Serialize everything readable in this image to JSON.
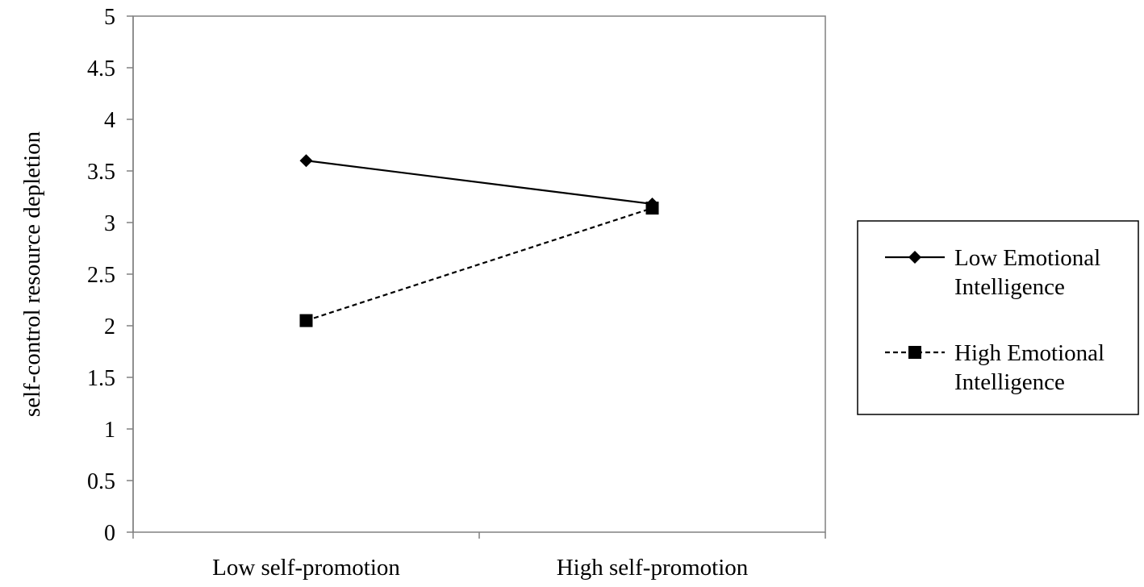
{
  "chart_data": {
    "type": "line",
    "title": "",
    "xlabel": "",
    "ylabel": "self-control resource depletion",
    "categories": [
      "Low self-promotion",
      "High self-promotion"
    ],
    "ylim": [
      0,
      5
    ],
    "yticks": [
      "0",
      "0.5",
      "1",
      "1.5",
      "2",
      "2.5",
      "3",
      "3.5",
      "4",
      "4.5",
      "5"
    ],
    "grid": false,
    "legend_position": "right",
    "series": [
      {
        "name_lines": [
          "Low Emotional",
          "Intelligence"
        ],
        "values": [
          3.6,
          3.18
        ],
        "marker": "diamond",
        "line_style": "solid",
        "color": "#000000"
      },
      {
        "name_lines": [
          "High Emotional",
          "Intelligence"
        ],
        "values": [
          2.05,
          3.14
        ],
        "marker": "square",
        "line_style": "dashed",
        "color": "#000000"
      }
    ]
  }
}
